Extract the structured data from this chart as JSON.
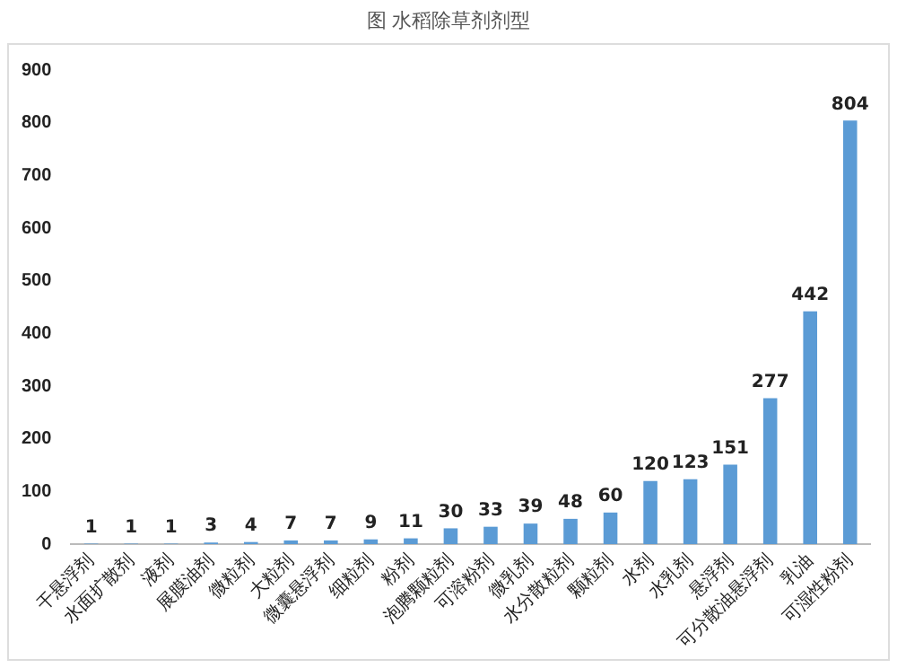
{
  "chart_data": {
    "type": "bar",
    "title": "图  水稻除草剂剂型",
    "categories": [
      "干悬浮剂",
      "水面扩散剂",
      "液剂",
      "展膜油剂",
      "微粒剂",
      "大粒剂",
      "微囊悬浮剂",
      "细粒剂",
      "粉剂",
      "泡腾颗粒剂",
      "可溶粉剂",
      "微乳剂",
      "水分散粒剂",
      "颗粒剂",
      "水剂",
      "水乳剂",
      "悬浮剂",
      "可分散油悬浮剂",
      "乳油",
      "可湿性粉剂"
    ],
    "values": [
      1,
      1,
      1,
      3,
      4,
      7,
      7,
      9,
      11,
      30,
      33,
      39,
      48,
      60,
      120,
      123,
      151,
      277,
      442,
      804
    ],
    "color": "#5b9bd5",
    "ylim": [
      0,
      900
    ],
    "yticks": [
      0,
      100,
      200,
      300,
      400,
      500,
      600,
      700,
      800,
      900
    ],
    "grid": false,
    "legend": false,
    "data_labels": true
  }
}
